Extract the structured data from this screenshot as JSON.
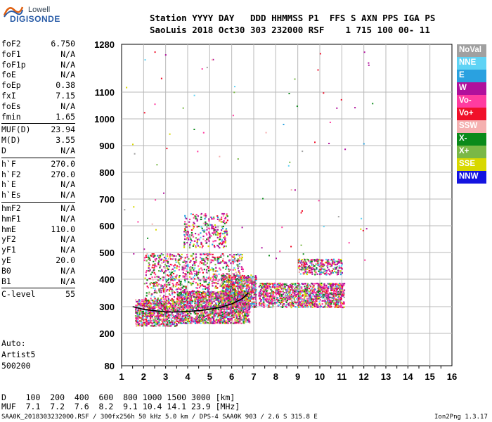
{
  "logo": {
    "line1": "Lowell",
    "line2": "DIGISONDE"
  },
  "header": {
    "row1": "Station YYYY DAY   DDD HHMMSS P1  FFS S AXN PPS IGA PS",
    "row2": "SaoLuis 2018 Oct30 303 232000 RSF    1 715 100 00- 11"
  },
  "params": [
    {
      "label": "foF2",
      "value": "6.750"
    },
    {
      "label": "foF1",
      "value": "N/A"
    },
    {
      "label": "foF1p",
      "value": "N/A"
    },
    {
      "label": "foE",
      "value": "N/A"
    },
    {
      "label": "foEp",
      "value": "0.38"
    },
    {
      "label": "fxI",
      "value": "7.15"
    },
    {
      "label": "foEs",
      "value": "N/A"
    },
    {
      "label": "fmin",
      "value": "1.65"
    },
    {
      "label": "MUF(D)",
      "value": "23.94",
      "sep": true
    },
    {
      "label": "M(D)",
      "value": "3.55"
    },
    {
      "label": "D",
      "value": "N/A"
    },
    {
      "label": "h`F",
      "value": "270.0",
      "sep": true
    },
    {
      "label": "h`F2",
      "value": "270.0"
    },
    {
      "label": "h`E",
      "value": "N/A"
    },
    {
      "label": "h`Es",
      "value": "N/A"
    },
    {
      "label": "hmF2",
      "value": "N/A",
      "sep": true
    },
    {
      "label": "hmF1",
      "value": "N/A"
    },
    {
      "label": "hmE",
      "value": "110.0"
    },
    {
      "label": "yF2",
      "value": "N/A"
    },
    {
      "label": "yF1",
      "value": "N/A"
    },
    {
      "label": "yE",
      "value": "20.0"
    },
    {
      "label": "B0",
      "value": "N/A"
    },
    {
      "label": "B1",
      "value": "N/A"
    },
    {
      "label": "C-level",
      "value": "55",
      "sep": true
    }
  ],
  "auto": {
    "line1": "Auto:",
    "line2": "Artist5",
    "line3": "500200"
  },
  "legend": [
    {
      "label": "NoVal",
      "color": "#a0a0a0"
    },
    {
      "label": "NNE",
      "color": "#5fd3f5"
    },
    {
      "label": "E",
      "color": "#2aa1e0"
    },
    {
      "label": "W",
      "color": "#b0109c"
    },
    {
      "label": "Vo-",
      "color": "#ff3ca0"
    },
    {
      "label": "Vo+",
      "color": "#f0102a"
    },
    {
      "label": "SSW",
      "color": "#f5b0b0"
    },
    {
      "label": "X-",
      "color": "#0a8a1a"
    },
    {
      "label": "X+",
      "color": "#7ab846"
    },
    {
      "label": "SSE",
      "color": "#d8d800"
    },
    {
      "label": "NNW",
      "color": "#1414e0"
    }
  ],
  "bottom": {
    "row1": "D    100  200  400  600  800 1000 1500 3000 [km]",
    "row2": "MUF  7.1  7.2  7.6  8.2  9.1 10.4 14.1 23.9 [MHz]"
  },
  "footer": {
    "left": "SAA0K_2018303232000.RSF / 300fx256h 50 kHz 5.0 km / DPS-4 SAA0K 903 / 2.6 S 315.8 E",
    "right": "Ion2Png 1.3.17"
  },
  "chart_data": {
    "type": "scatter",
    "x_ticks": [
      1,
      2,
      3,
      4,
      5,
      6,
      7,
      8,
      9,
      10,
      11,
      12,
      13,
      14,
      15,
      16
    ],
    "y_ticks": [
      80,
      200,
      300,
      400,
      500,
      600,
      700,
      800,
      900,
      1000,
      1100,
      1280
    ],
    "xlim": [
      1,
      16
    ],
    "ylim": [
      80,
      1280
    ],
    "y_scale": "nonlinear",
    "grid": true,
    "legend_position": "right",
    "trace": {
      "name": "",
      "x": [
        1.5,
        2.0,
        2.5,
        3.0,
        3.5,
        4.0,
        4.5,
        5.0,
        5.5,
        6.0,
        6.5,
        6.75
      ],
      "y": [
        300,
        290,
        285,
        280,
        280,
        282,
        285,
        290,
        298,
        310,
        330,
        350
      ]
    },
    "clusters": [
      {
        "x": [
          1.6,
          3.5
        ],
        "y": [
          230,
          330
        ],
        "density": 1.0
      },
      {
        "x": [
          3.5,
          6.8
        ],
        "y": [
          240,
          360
        ],
        "density": 1.0
      },
      {
        "x": [
          5.5,
          7.1
        ],
        "y": [
          300,
          420
        ],
        "density": 0.9
      },
      {
        "x": [
          7.2,
          11.1
        ],
        "y": [
          300,
          390
        ],
        "density": 0.85
      },
      {
        "x": [
          9.0,
          11.0
        ],
        "y": [
          420,
          480
        ],
        "density": 0.6
      },
      {
        "x": [
          2.0,
          6.5
        ],
        "y": [
          330,
          500
        ],
        "density": 0.35
      },
      {
        "x": [
          3.8,
          5.8
        ],
        "y": [
          520,
          650
        ],
        "density": 0.3
      }
    ]
  }
}
